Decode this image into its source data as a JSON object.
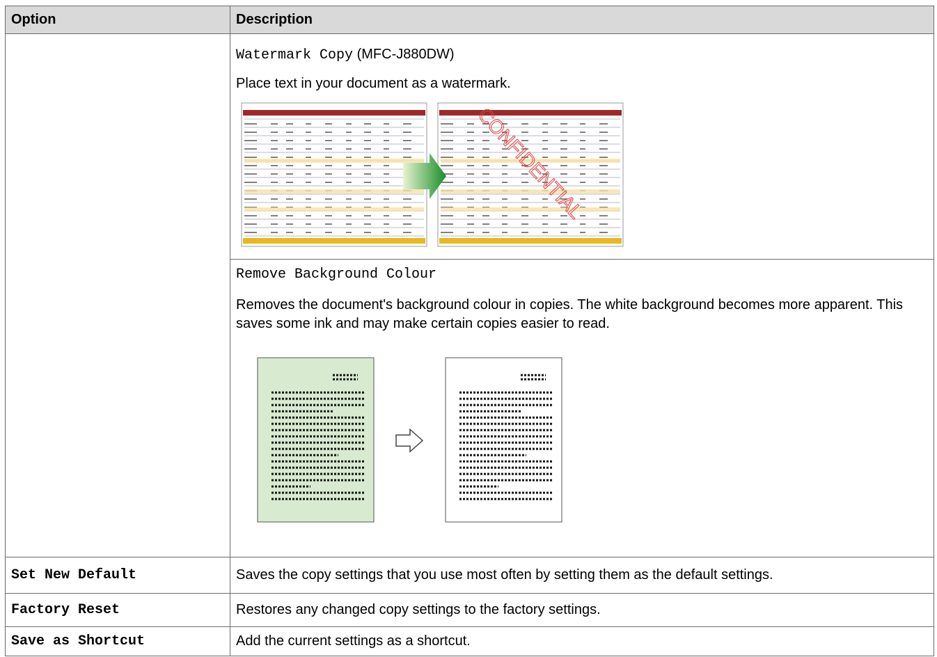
{
  "table": {
    "header": [
      "Option",
      "Description"
    ],
    "continued_rows": [
      {
        "setting": "Watermark Copy",
        "model": "(MFC-J880DW)",
        "description": "Place text in your document as a watermark.",
        "watermark_example": "CONFIDENTIAL"
      },
      {
        "setting": "Remove Background Colour",
        "description": "Removes the document's background colour in copies. The white background becomes more apparent. This saves some ink and may make certain copies easier to read."
      }
    ],
    "rows": [
      [
        "Set New Default",
        "Saves the copy settings that you use most often by setting them as the default settings."
      ],
      [
        "Factory Reset",
        "Restores any changed copy settings to the factory settings."
      ],
      [
        "Save as Shortcut",
        "Add the current settings as a shortcut."
      ]
    ]
  }
}
